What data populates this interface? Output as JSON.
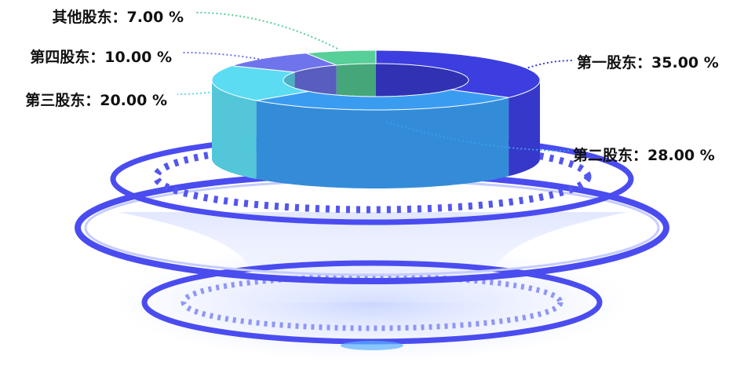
{
  "chart_data": {
    "type": "pie",
    "categories": [
      "第一股东",
      "第二股东",
      "第三股东",
      "第四股东",
      "其他股东"
    ],
    "separator": "：",
    "values": [
      35,
      28,
      20,
      10,
      7
    ],
    "value_labels": [
      "35.00 %",
      "28.00 %",
      "20.00 %",
      "10.00 %",
      "7.00 %"
    ],
    "colors": [
      "#3c3ee0",
      "#3a9cf0",
      "#5cdcf2",
      "#6f74ec",
      "#56cf98"
    ]
  }
}
